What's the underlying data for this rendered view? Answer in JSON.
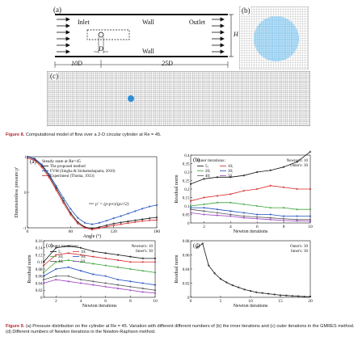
{
  "figure8": {
    "panel_a": {
      "label": "(a)",
      "inlet": "Inlet",
      "wall_top": "Wall",
      "wall_bottom": "Wall",
      "outlet": "Outlet",
      "H": "H",
      "D": "D",
      "dist_left": "10D",
      "dist_right": "25D"
    },
    "panel_b": {
      "label": "(b)"
    },
    "panel_c": {
      "label": "(c)"
    },
    "caption_label": "Figure 8.",
    "caption_text": "Computational model of flow over a 2-D circular cylinder at Re = 45."
  },
  "figure9": {
    "caption_label": "Figure 9.",
    "caption_text": "(a) Pressure distribution on the cylinder at Re = 45. Variation with different different numbers of (b) the inner iterations and (c) outer iterations in the GMRES method. (d) Different numbers of Newton iterations in the Newton-Raphson method.",
    "colors": {
      "black": "#111111",
      "red": "#d62728",
      "blue": "#1f4fbf",
      "green": "#3aa33a",
      "purple": "#9b3fbf",
      "gray": "#555555"
    }
  },
  "chart_data": [
    {
      "id": "a",
      "type": "line",
      "panel_label": "(a)",
      "title": "Steady state at Re=45",
      "xlabel": "Angle (°)",
      "ylabel": "Dimensionless pressure p'",
      "xlim": [
        0,
        180
      ],
      "ylim": [
        -1,
        1
      ],
      "xticks": [
        "0",
        "60",
        "120",
        "180"
      ],
      "yticks": [
        "-1",
        "0",
        "1"
      ],
      "formula": "p' = (p-p∞)/(ρv²/2)",
      "series": [
        {
          "name": "The proposed method",
          "color": "#111111",
          "x": [
            0,
            10,
            20,
            30,
            40,
            50,
            60,
            70,
            80,
            90,
            100,
            110,
            120,
            130,
            140,
            150,
            160,
            170,
            180
          ],
          "y": [
            1.0,
            0.93,
            0.75,
            0.47,
            0.12,
            -0.24,
            -0.58,
            -0.84,
            -0.98,
            -1.02,
            -0.98,
            -0.93,
            -0.88,
            -0.85,
            -0.82,
            -0.79,
            -0.76,
            -0.73,
            -0.71
          ]
        },
        {
          "name": "FVM (Singha & Sinhamahapatra, 2010)",
          "color": "#1f4fbf",
          "x": [
            0,
            10,
            20,
            30,
            40,
            50,
            60,
            70,
            80,
            90,
            100,
            110,
            120,
            130,
            140,
            150,
            160,
            170,
            180
          ],
          "y": [
            1.0,
            0.95,
            0.78,
            0.51,
            0.18,
            -0.16,
            -0.47,
            -0.72,
            -0.86,
            -0.9,
            -0.86,
            -0.8,
            -0.73,
            -0.67,
            -0.6,
            -0.53,
            -0.46,
            -0.4,
            -0.36
          ]
        },
        {
          "name": "Experiment (Thoma, 1933)",
          "color": "#d62728",
          "x": [
            0,
            10,
            20,
            30,
            40,
            50,
            60,
            70,
            80,
            90,
            100,
            110,
            120,
            130,
            140,
            150,
            160,
            170,
            180
          ],
          "y": [
            0.96,
            0.9,
            0.7,
            0.42,
            0.06,
            -0.3,
            -0.63,
            -0.88,
            -1.0,
            -1.05,
            -1.01,
            -0.97,
            -0.93,
            -0.9,
            -0.87,
            -0.84,
            -0.81,
            -0.79,
            -0.78
          ]
        }
      ]
    },
    {
      "id": "b",
      "type": "line",
      "panel_label": "(b)",
      "xlabel": "Newton iterations",
      "ylabel": "Residual norm",
      "xlim": [
        1,
        10
      ],
      "ylim": [
        0,
        0.4
      ],
      "xticks": [
        "2",
        "4",
        "6",
        "8",
        "10"
      ],
      "yticks": [
        "0",
        "0.05",
        "0.1",
        "0.15",
        "0.2",
        "0.25",
        "0.3",
        "0.35",
        "0.4"
      ],
      "legend_title": "Inner iterations:",
      "note_lines": [
        "Newton's: 10",
        "Outer's: 30"
      ],
      "x": [
        1,
        2,
        3,
        4,
        5,
        6,
        7,
        8,
        9,
        10
      ],
      "series": [
        {
          "name": "5;",
          "color": "#111111",
          "values": [
            0.23,
            0.26,
            0.27,
            0.27,
            0.28,
            0.3,
            0.31,
            0.33,
            0.36,
            0.42
          ]
        },
        {
          "name": "10;",
          "color": "#d62728",
          "values": [
            0.13,
            0.15,
            0.16,
            0.17,
            0.19,
            0.2,
            0.22,
            0.21,
            0.2,
            0.2
          ]
        },
        {
          "name": "20;",
          "color": "#3aa33a",
          "values": [
            0.1,
            0.11,
            0.12,
            0.12,
            0.11,
            0.1,
            0.09,
            0.09,
            0.08,
            0.08
          ]
        },
        {
          "name": "30;",
          "color": "#1f4fbf",
          "values": [
            0.09,
            0.09,
            0.08,
            0.07,
            0.06,
            0.05,
            0.05,
            0.04,
            0.04,
            0.04
          ]
        },
        {
          "name": "40;",
          "color": "#555555",
          "values": [
            0.08,
            0.07,
            0.06,
            0.05,
            0.04,
            0.035,
            0.03,
            0.025,
            0.02,
            0.02
          ]
        },
        {
          "name": "50.",
          "color": "#9b3fbf",
          "values": [
            0.06,
            0.05,
            0.045,
            0.04,
            0.03,
            0.025,
            0.02,
            0.015,
            0.012,
            0.01
          ]
        }
      ]
    },
    {
      "id": "c",
      "type": "line",
      "panel_label": "(c)",
      "xlabel": "Newton iterations",
      "ylabel": "Residual norm",
      "xlim": [
        1,
        10
      ],
      "ylim": [
        0,
        0.16
      ],
      "xticks": [
        "2",
        "4",
        "6",
        "8",
        "10"
      ],
      "yticks": [
        "0",
        "0.02",
        "0.04",
        "0.06",
        "0.08",
        "0.1",
        "0.12",
        "0.14",
        "0.16"
      ],
      "legend_title": "Outer iterations:",
      "note_lines": [
        "Newton's: 10",
        "Inner's: 30"
      ],
      "x": [
        1,
        2,
        3,
        4,
        5,
        6,
        7,
        8,
        9,
        10
      ],
      "series": [
        {
          "name": "5;",
          "color": "#111111",
          "values": [
            0.1,
            0.14,
            0.145,
            0.14,
            0.13,
            0.125,
            0.12,
            0.115,
            0.11,
            0.11
          ]
        },
        {
          "name": "10;",
          "color": "#d62728",
          "values": [
            0.09,
            0.12,
            0.125,
            0.12,
            0.115,
            0.11,
            0.105,
            0.1,
            0.1,
            0.1
          ]
        },
        {
          "name": "20;",
          "color": "#3aa33a",
          "values": [
            0.07,
            0.1,
            0.105,
            0.1,
            0.095,
            0.09,
            0.085,
            0.08,
            0.075,
            0.07
          ]
        },
        {
          "name": "30;",
          "color": "#1f4fbf",
          "values": [
            0.06,
            0.08,
            0.085,
            0.075,
            0.065,
            0.06,
            0.05,
            0.045,
            0.04,
            0.035
          ]
        },
        {
          "name": "40;",
          "color": "#555555",
          "values": [
            0.05,
            0.06,
            0.06,
            0.05,
            0.045,
            0.04,
            0.035,
            0.03,
            0.025,
            0.02
          ]
        },
        {
          "name": "50.",
          "color": "#9b3fbf",
          "values": [
            0.04,
            0.05,
            0.045,
            0.04,
            0.035,
            0.03,
            0.025,
            0.02,
            0.015,
            0.012
          ]
        }
      ]
    },
    {
      "id": "d",
      "type": "line",
      "panel_label": "(d)",
      "xlabel": "Newton iterations",
      "ylabel": "Residual norm",
      "xlim": [
        0,
        20
      ],
      "ylim": [
        0,
        0.08
      ],
      "xticks": [
        "0",
        "5",
        "10",
        "15",
        "20"
      ],
      "yticks": [
        "0",
        "0.02",
        "0.04",
        "0.06",
        "0.08"
      ],
      "note_lines": [
        "Outer's: 30",
        "Inner's: 30"
      ],
      "series": [
        {
          "name": "",
          "color": "#111111",
          "x": [
            1,
            2,
            3,
            4,
            5,
            6,
            7,
            8,
            9,
            10,
            11,
            12,
            13,
            14,
            15,
            16,
            17,
            18,
            19,
            20
          ],
          "y": [
            0.07,
            0.076,
            0.045,
            0.034,
            0.026,
            0.021,
            0.017,
            0.014,
            0.011,
            0.009,
            0.007,
            0.006,
            0.005,
            0.004,
            0.003,
            0.0025,
            0.002,
            0.0015,
            0.001,
            0.001
          ]
        }
      ]
    }
  ]
}
